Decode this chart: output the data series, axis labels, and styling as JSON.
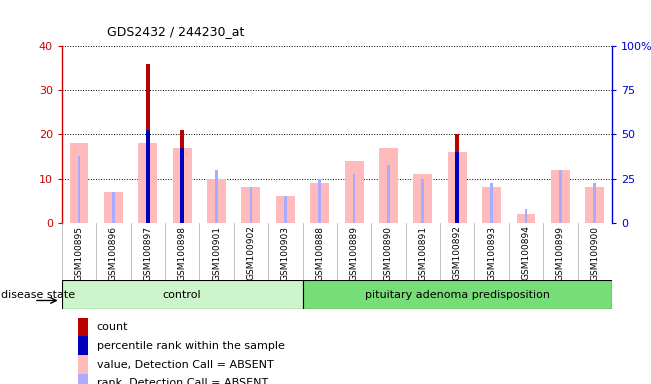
{
  "title": "GDS2432 / 244230_at",
  "samples": [
    "GSM100895",
    "GSM100896",
    "GSM100897",
    "GSM100898",
    "GSM100901",
    "GSM100902",
    "GSM100903",
    "GSM100888",
    "GSM100889",
    "GSM100890",
    "GSM100891",
    "GSM100892",
    "GSM100893",
    "GSM100894",
    "GSM100899",
    "GSM100900"
  ],
  "count_values": [
    0,
    0,
    36,
    21,
    0,
    0,
    0,
    0,
    0,
    0,
    0,
    20,
    0,
    0,
    0,
    0
  ],
  "value_absent": [
    18,
    7,
    18,
    17,
    10,
    8,
    6,
    9,
    14,
    17,
    11,
    16,
    8,
    2,
    12,
    8
  ],
  "rank_absent": [
    15,
    7,
    21,
    12,
    12,
    8,
    6,
    10,
    11,
    13,
    10,
    16,
    9,
    3,
    12,
    9
  ],
  "percentile_rank": [
    0,
    0,
    21,
    17,
    0,
    0,
    0,
    0,
    0,
    0,
    0,
    16,
    0,
    0,
    0,
    0
  ],
  "ylim_left": [
    0,
    40
  ],
  "ylim_right": [
    0,
    100
  ],
  "yticks_left": [
    0,
    10,
    20,
    30,
    40
  ],
  "yticks_right": [
    0,
    25,
    50,
    75,
    100
  ],
  "color_count": "#bb0000",
  "color_percentile": "#0000bb",
  "color_value_absent": "#ffbbbb",
  "color_rank_absent": "#aaaaff",
  "color_control_bg": "#ccf5cc",
  "color_pituitary_bg": "#77dd77",
  "color_axis_left": "#cc0000",
  "color_axis_right": "#0000cc",
  "color_plot_bg": "#ffffff",
  "color_xtick_bg": "#d8d8d8",
  "group_boundary": 7,
  "n_control": 7,
  "n_pituitary": 9
}
